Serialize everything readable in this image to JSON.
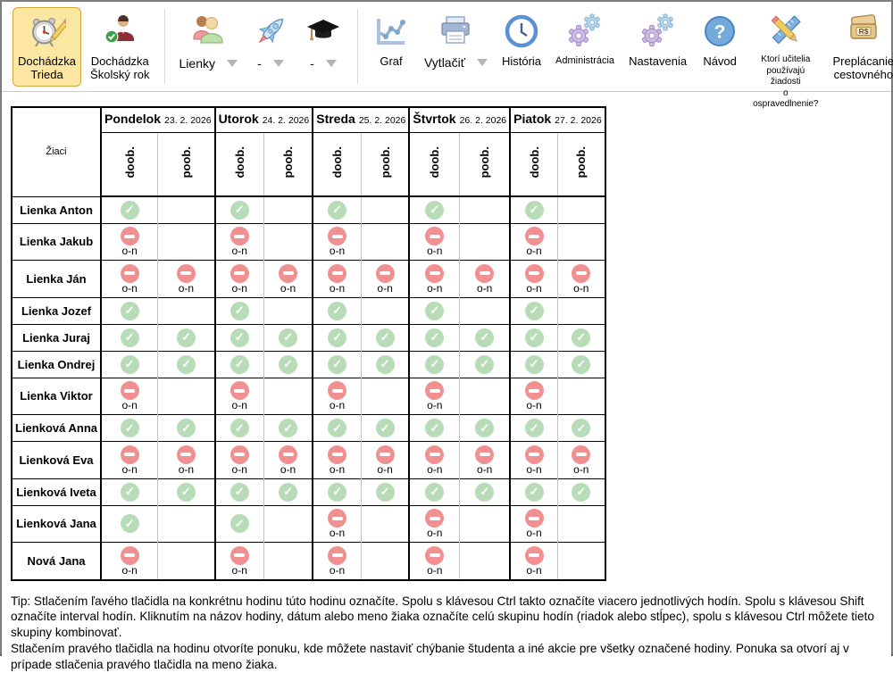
{
  "toolbar": {
    "attendance_class": {
      "line1": "Dochádzka",
      "line2": "Trieda"
    },
    "attendance_year": {
      "line1": "Dochádzka",
      "line2": "Školský rok"
    },
    "class_dropdown": {
      "label": "Lienky"
    },
    "rocket_dropdown": {
      "label": "-"
    },
    "grad_dropdown": {
      "label": "-"
    },
    "graf_label": "Graf",
    "print_label": "Vytlačiť",
    "history_label": "História",
    "admin_label": "Administrácia",
    "settings_label": "Nastavenia",
    "guide_label": "Návod",
    "guide_glyph": "?",
    "teacher_question": {
      "line1": "Ktorí učitelia",
      "line2": "používajú žiadosti",
      "line3": "o ospravedlnenie?"
    },
    "travel": {
      "line1": "Preplácanie",
      "line2": "cestovného",
      "glyph": "R$"
    }
  },
  "table": {
    "corner_label": "Žiaci",
    "days": [
      {
        "name": "Pondelok",
        "date": "23. 2. 2026"
      },
      {
        "name": "Utorok",
        "date": "24. 2. 2026"
      },
      {
        "name": "Streda",
        "date": "25. 2. 2026"
      },
      {
        "name": "Štvrtok",
        "date": "26. 2. 2026"
      },
      {
        "name": "Piatok",
        "date": "27. 2. 2026"
      }
    ],
    "subcolumns": [
      "doob.",
      "poob."
    ],
    "absence_label": "o-n",
    "rows": [
      {
        "student": "Lienka Anton",
        "cells": [
          "P",
          "",
          "P",
          "",
          "P",
          "",
          "P",
          "",
          "P",
          ""
        ]
      },
      {
        "student": "Lienka Jakub",
        "cells": [
          "A",
          "",
          "A",
          "",
          "A",
          "",
          "A",
          "",
          "A",
          ""
        ]
      },
      {
        "student": "Lienka Ján",
        "cells": [
          "A",
          "A",
          "A",
          "A",
          "A",
          "A",
          "A",
          "A",
          "A",
          "A"
        ]
      },
      {
        "student": "Lienka Jozef",
        "cells": [
          "P",
          "",
          "P",
          "",
          "P",
          "",
          "P",
          "",
          "P",
          ""
        ]
      },
      {
        "student": "Lienka Juraj",
        "cells": [
          "P",
          "P",
          "P",
          "P",
          "P",
          "P",
          "P",
          "P",
          "P",
          "P"
        ]
      },
      {
        "student": "Lienka Ondrej",
        "cells": [
          "P",
          "P",
          "P",
          "P",
          "P",
          "P",
          "P",
          "P",
          "P",
          "P"
        ]
      },
      {
        "student": "Lienka Viktor",
        "cells": [
          "A",
          "",
          "A",
          "",
          "A",
          "",
          "A",
          "",
          "A",
          ""
        ]
      },
      {
        "student": "Lienková Anna",
        "cells": [
          "P",
          "P",
          "P",
          "P",
          "P",
          "P",
          "P",
          "P",
          "P",
          "P"
        ]
      },
      {
        "student": "Lienková Eva",
        "cells": [
          "A",
          "A",
          "A",
          "A",
          "A",
          "A",
          "A",
          "A",
          "A",
          "A"
        ]
      },
      {
        "student": "Lienková Iveta",
        "cells": [
          "P",
          "P",
          "P",
          "P",
          "P",
          "P",
          "P",
          "P",
          "P",
          "P"
        ]
      },
      {
        "student": "Lienková Jana",
        "cells": [
          "P",
          "",
          "P",
          "",
          "A",
          "",
          "A",
          "",
          "A",
          ""
        ]
      },
      {
        "student": "Nová Jana",
        "cells": [
          "A",
          "",
          "A",
          "",
          "A",
          "",
          "A",
          "",
          "A",
          ""
        ]
      }
    ]
  },
  "tip": {
    "paragraph1": "Tip: Stlačením ľavého tlačidla na konkrétnu hodinu túto hodinu označíte. Spolu s klávesou Ctrl takto označíte viacero jednotlivých hodín. Spolu s klávesou Shift označíte interval hodín. Kliknutím na názov hodiny, dátum alebo meno žiaka označíte celú skupinu hodín (riadok alebo stĺpec), spolu s klávesou Ctrl môžete tieto skupiny kombinovať.",
    "paragraph2": "Stlačením pravého tlačidla na hodinu otvoríte ponuku, kde môžete nastaviť chýbanie študenta a iné akcie pre všetky označené hodiny. Ponuka sa otvorí aj v prípade stlačenia pravého tlačidla na meno žiaka."
  },
  "colors": {
    "present": "#b7dcb7",
    "absent": "#f19090",
    "active_tab_bg": "#fbe7a2",
    "active_tab_border": "#d2a83e"
  }
}
